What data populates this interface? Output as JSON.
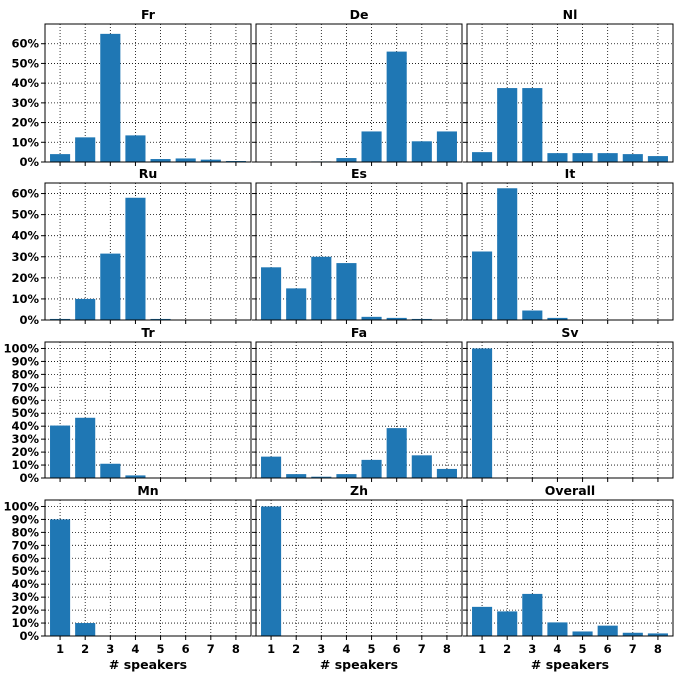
{
  "figure": {
    "bar_color": "#1f77b4",
    "grid_color": "#000000"
  },
  "chart_data": [
    {
      "type": "bar",
      "title": "Fr",
      "categories": [
        "1",
        "2",
        "3",
        "4",
        "5",
        "6",
        "7",
        "8"
      ],
      "values": [
        4,
        12.5,
        65,
        13.5,
        1.5,
        1.8,
        1.2,
        0.5
      ],
      "ylim": [
        0,
        70
      ],
      "yticks": [
        0,
        10,
        20,
        30,
        40,
        50,
        60
      ],
      "ytick_labels": [
        "0%",
        "10%",
        "20%",
        "30%",
        "40%",
        "50%",
        "60%"
      ],
      "xlabel": "",
      "grid": true
    },
    {
      "type": "bar",
      "title": "De",
      "categories": [
        "1",
        "2",
        "3",
        "4",
        "5",
        "6",
        "7",
        "8"
      ],
      "values": [
        0,
        0,
        0.3,
        2,
        15.5,
        56,
        10.5,
        15.5
      ],
      "ylim": [
        0,
        70
      ],
      "yticks": [
        0,
        10,
        20,
        30,
        40,
        50,
        60
      ],
      "ytick_labels": [],
      "xlabel": "",
      "grid": true
    },
    {
      "type": "bar",
      "title": "Nl",
      "categories": [
        "1",
        "2",
        "3",
        "4",
        "5",
        "6",
        "7",
        "8"
      ],
      "values": [
        5,
        37.5,
        37.5,
        4.5,
        4.5,
        4.5,
        4,
        3
      ],
      "ylim": [
        0,
        70
      ],
      "yticks": [
        0,
        10,
        20,
        30,
        40,
        50,
        60
      ],
      "ytick_labels": [],
      "xlabel": "",
      "grid": true
    },
    {
      "type": "bar",
      "title": "Ru",
      "categories": [
        "1",
        "2",
        "3",
        "4",
        "5",
        "6",
        "7",
        "8"
      ],
      "values": [
        0.5,
        10,
        31.5,
        58,
        0.5,
        0,
        0,
        0
      ],
      "ylim": [
        0,
        65
      ],
      "yticks": [
        0,
        10,
        20,
        30,
        40,
        50,
        60
      ],
      "ytick_labels": [
        "0%",
        "10%",
        "20%",
        "30%",
        "40%",
        "50%",
        "60%"
      ],
      "xlabel": "",
      "grid": true
    },
    {
      "type": "bar",
      "title": "Es",
      "categories": [
        "1",
        "2",
        "3",
        "4",
        "5",
        "6",
        "7",
        "8"
      ],
      "values": [
        25,
        15,
        30,
        27,
        1.5,
        1,
        0.5,
        0
      ],
      "ylim": [
        0,
        65
      ],
      "yticks": [
        0,
        10,
        20,
        30,
        40,
        50,
        60
      ],
      "ytick_labels": [],
      "xlabel": "",
      "grid": true
    },
    {
      "type": "bar",
      "title": "It",
      "categories": [
        "1",
        "2",
        "3",
        "4",
        "5",
        "6",
        "7",
        "8"
      ],
      "values": [
        32.5,
        62.5,
        4.5,
        1,
        0,
        0,
        0,
        0
      ],
      "ylim": [
        0,
        65
      ],
      "yticks": [
        0,
        10,
        20,
        30,
        40,
        50,
        60
      ],
      "ytick_labels": [],
      "xlabel": "",
      "grid": true
    },
    {
      "type": "bar",
      "title": "Tr",
      "categories": [
        "1",
        "2",
        "3",
        "4",
        "5",
        "6",
        "7",
        "8"
      ],
      "values": [
        40.5,
        46.5,
        11,
        2,
        0,
        0,
        0,
        0
      ],
      "ylim": [
        0,
        105
      ],
      "yticks": [
        0,
        10,
        20,
        30,
        40,
        50,
        60,
        70,
        80,
        90,
        100
      ],
      "ytick_labels": [
        "0%",
        "10%",
        "20%",
        "30%",
        "40%",
        "50%",
        "60%",
        "70%",
        "80%",
        "90%",
        "100%"
      ],
      "xlabel": "",
      "grid": true
    },
    {
      "type": "bar",
      "title": "Fa",
      "categories": [
        "1",
        "2",
        "3",
        "4",
        "5",
        "6",
        "7",
        "8"
      ],
      "values": [
        16.5,
        3,
        1,
        3,
        14,
        38.5,
        17.5,
        7
      ],
      "ylim": [
        0,
        105
      ],
      "yticks": [
        0,
        10,
        20,
        30,
        40,
        50,
        60,
        70,
        80,
        90,
        100
      ],
      "ytick_labels": [],
      "xlabel": "",
      "grid": true
    },
    {
      "type": "bar",
      "title": "Sv",
      "categories": [
        "1",
        "2",
        "3",
        "4",
        "5",
        "6",
        "7",
        "8"
      ],
      "values": [
        100,
        0,
        0,
        0,
        0,
        0,
        0,
        0
      ],
      "ylim": [
        0,
        105
      ],
      "yticks": [
        0,
        10,
        20,
        30,
        40,
        50,
        60,
        70,
        80,
        90,
        100
      ],
      "ytick_labels": [],
      "xlabel": "",
      "grid": true
    },
    {
      "type": "bar",
      "title": "Mn",
      "categories": [
        "1",
        "2",
        "3",
        "4",
        "5",
        "6",
        "7",
        "8"
      ],
      "values": [
        90,
        10,
        0,
        0,
        0,
        0,
        0,
        0
      ],
      "ylim": [
        0,
        105
      ],
      "yticks": [
        0,
        10,
        20,
        30,
        40,
        50,
        60,
        70,
        80,
        90,
        100
      ],
      "ytick_labels": [
        "0%",
        "10%",
        "20%",
        "30%",
        "40%",
        "50%",
        "60%",
        "70%",
        "80%",
        "90%",
        "100%"
      ],
      "xlabel": "# speakers",
      "xtick_labels": [
        "1",
        "2",
        "3",
        "4",
        "5",
        "6",
        "7",
        "8"
      ],
      "grid": true
    },
    {
      "type": "bar",
      "title": "Zh",
      "categories": [
        "1",
        "2",
        "3",
        "4",
        "5",
        "6",
        "7",
        "8"
      ],
      "values": [
        100,
        0,
        0,
        0,
        0,
        0,
        0,
        0
      ],
      "ylim": [
        0,
        105
      ],
      "yticks": [
        0,
        10,
        20,
        30,
        40,
        50,
        60,
        70,
        80,
        90,
        100
      ],
      "ytick_labels": [],
      "xlabel": "# speakers",
      "xtick_labels": [
        "1",
        "2",
        "3",
        "4",
        "5",
        "6",
        "7",
        "8"
      ],
      "grid": true
    },
    {
      "type": "bar",
      "title": "Overall",
      "categories": [
        "1",
        "2",
        "3",
        "4",
        "5",
        "6",
        "7",
        "8"
      ],
      "values": [
        22.5,
        19,
        32.5,
        10.5,
        3.5,
        8,
        2.5,
        2
      ],
      "ylim": [
        0,
        105
      ],
      "yticks": [
        0,
        10,
        20,
        30,
        40,
        50,
        60,
        70,
        80,
        90,
        100
      ],
      "ytick_labels": [],
      "xlabel": "# speakers",
      "xtick_labels": [
        "1",
        "2",
        "3",
        "4",
        "5",
        "6",
        "7",
        "8"
      ],
      "grid": true
    }
  ]
}
